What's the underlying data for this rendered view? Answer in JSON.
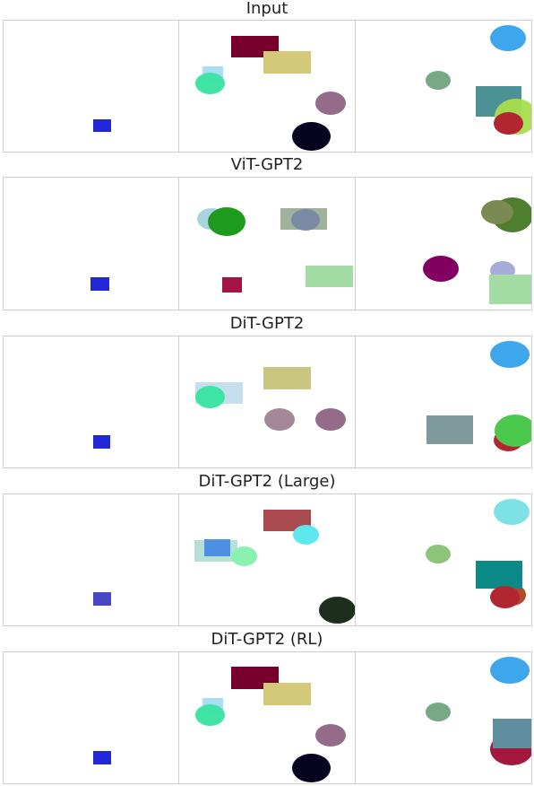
{
  "rows": [
    {
      "title": "Input"
    },
    {
      "title": "ViT-GPT2"
    },
    {
      "title": "DiT-GPT2"
    },
    {
      "title": "DiT-GPT2 (Large)"
    },
    {
      "title": "DiT-GPT2 (RL)"
    }
  ],
  "colors": {
    "panel_border": "#cfcfcf",
    "blue": "#2228d8",
    "maroon": "#76002b",
    "khaki": "#d3c978",
    "light_blue": "#a8dcf7",
    "mint": "#38e3a0",
    "mauve": "#946b88",
    "navy_black": "#050320",
    "sky": "#3ea6ec",
    "sage": "#78a884",
    "teal": "#4c9295",
    "lime": "#a5de4d",
    "crimson": "#b22632"
  }
}
